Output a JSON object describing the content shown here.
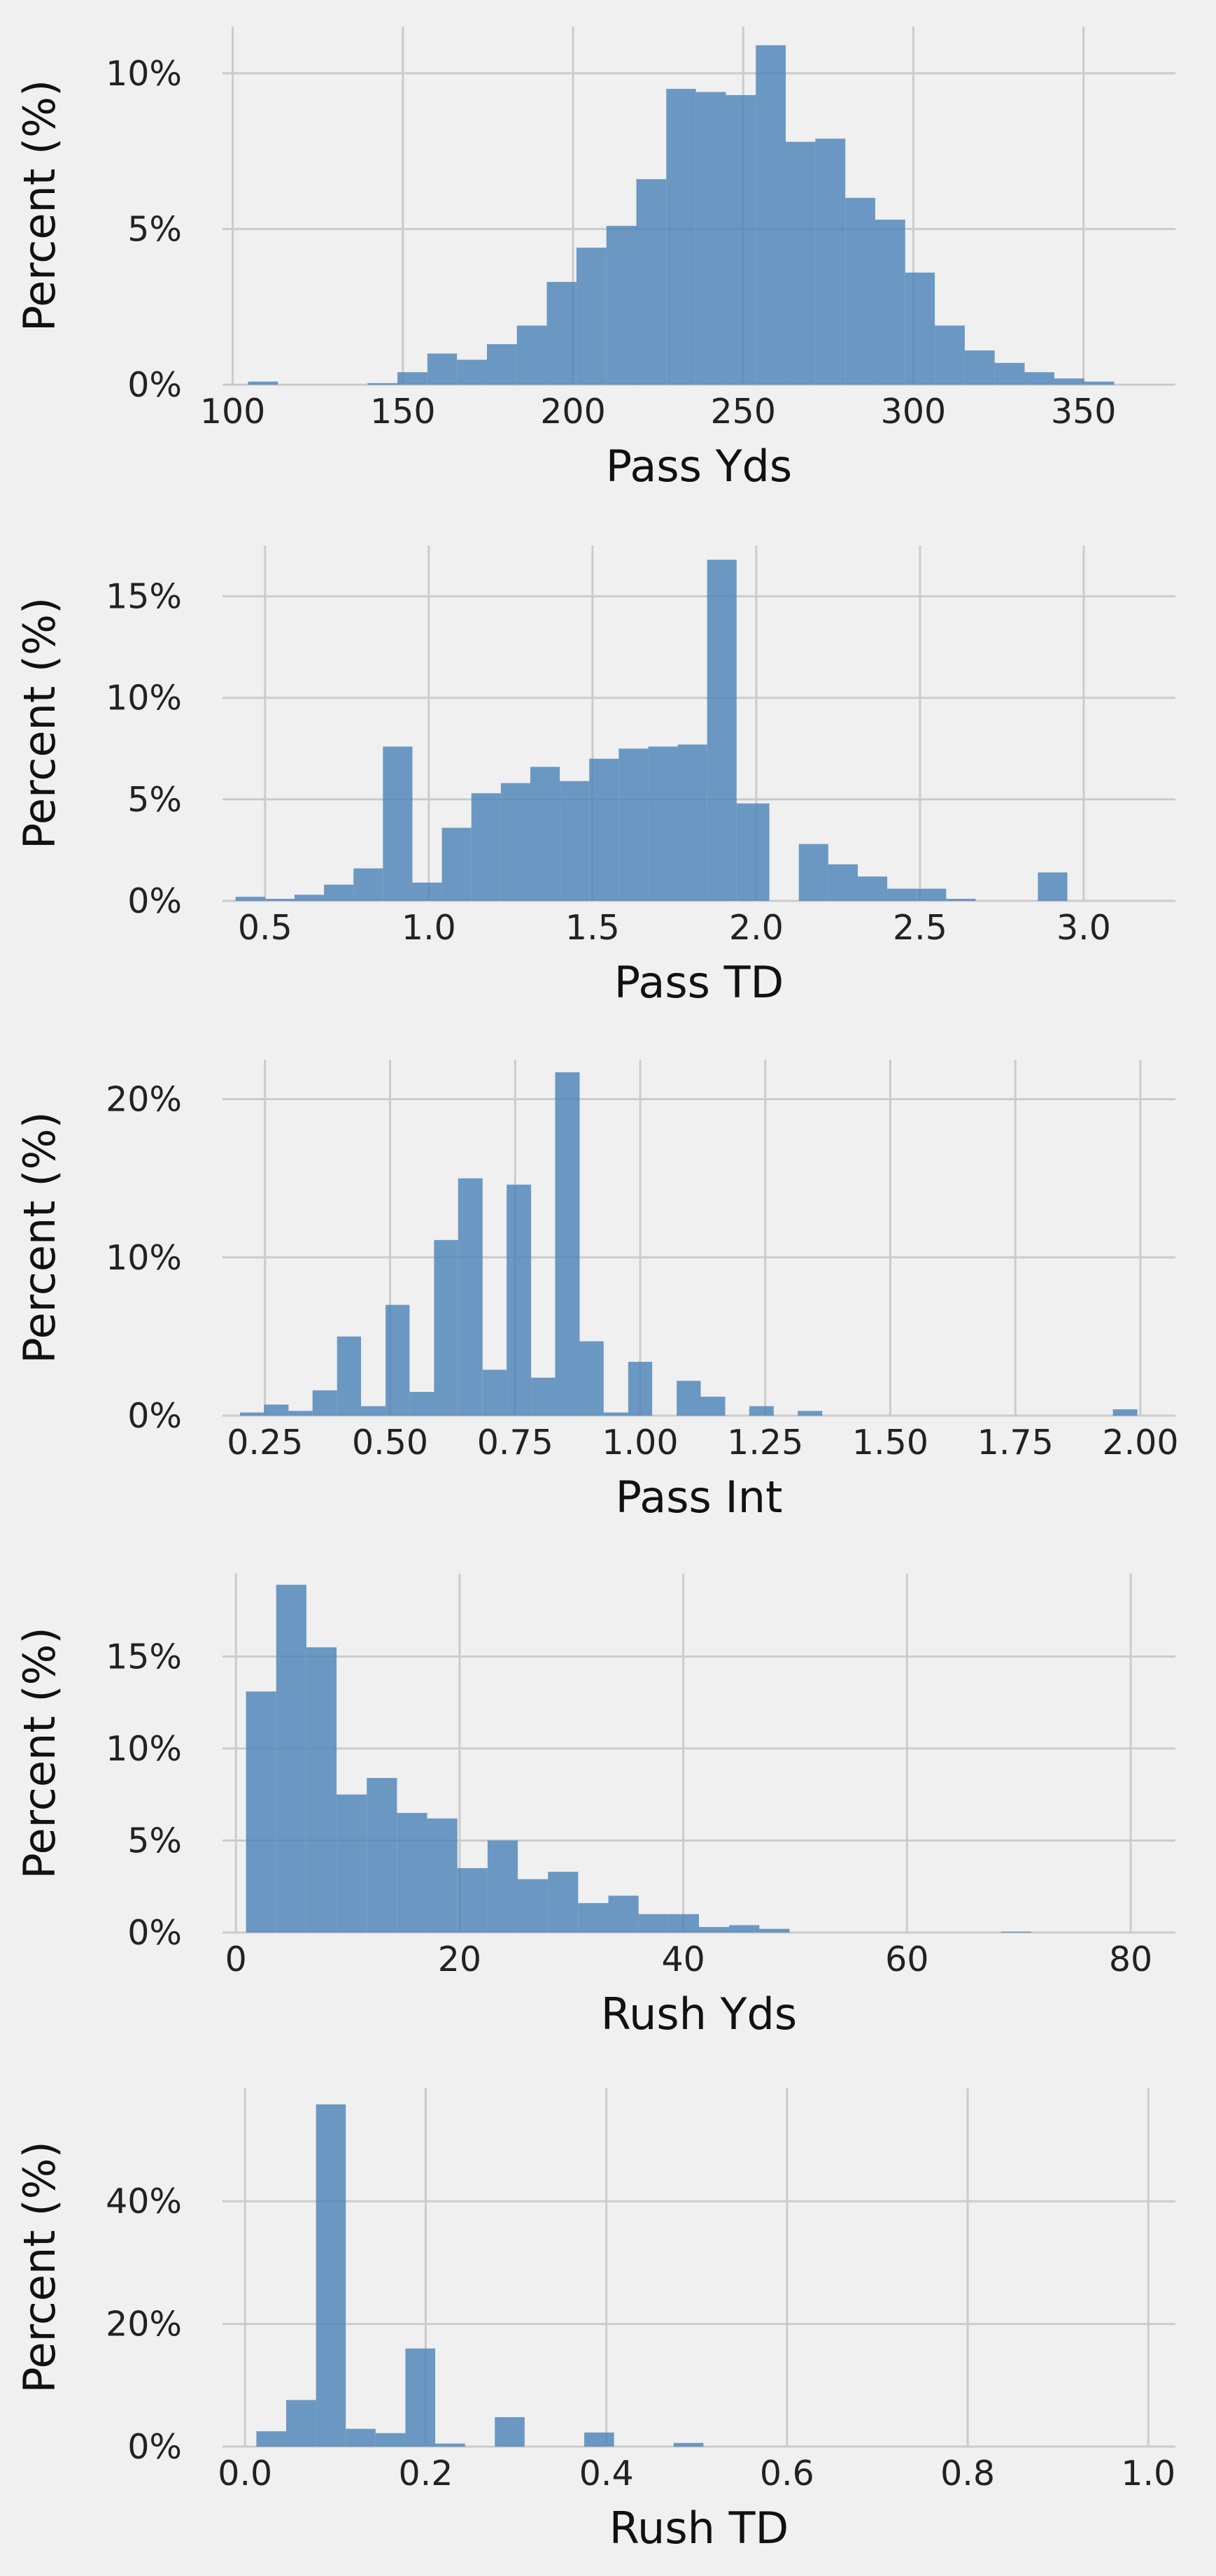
{
  "chart_data": [
    {
      "type": "bar",
      "xlabel": "Pass Yds",
      "ylabel": "Percent (%)",
      "xlim": [
        97,
        377
      ],
      "ylim": [
        0,
        11.5
      ],
      "xticks": [
        100,
        150,
        200,
        250,
        300,
        350
      ],
      "xtick_labels": [
        "100",
        "150",
        "200",
        "250",
        "300",
        "350"
      ],
      "yticks": [
        0,
        5,
        10
      ],
      "ytick_labels": [
        "0%",
        "5%",
        "10%"
      ],
      "grid": true,
      "bins": [
        {
          "x0": 104.5,
          "x1": 113.3,
          "value": 0.1
        },
        {
          "x0": 139.6,
          "x1": 148.4,
          "value": 0.05
        },
        {
          "x0": 148.4,
          "x1": 157.2,
          "value": 0.4
        },
        {
          "x0": 157.2,
          "x1": 165.9,
          "value": 1.0
        },
        {
          "x0": 165.9,
          "x1": 174.7,
          "value": 0.8
        },
        {
          "x0": 174.7,
          "x1": 183.5,
          "value": 1.3
        },
        {
          "x0": 183.5,
          "x1": 192.3,
          "value": 1.9
        },
        {
          "x0": 192.3,
          "x1": 201.0,
          "value": 3.3
        },
        {
          "x0": 201.0,
          "x1": 209.8,
          "value": 4.4
        },
        {
          "x0": 209.8,
          "x1": 218.6,
          "value": 5.1
        },
        {
          "x0": 218.6,
          "x1": 227.4,
          "value": 6.6
        },
        {
          "x0": 227.4,
          "x1": 236.1,
          "value": 9.5
        },
        {
          "x0": 236.1,
          "x1": 244.9,
          "value": 9.4
        },
        {
          "x0": 244.9,
          "x1": 253.7,
          "value": 9.3
        },
        {
          "x0": 253.7,
          "x1": 262.5,
          "value": 10.9
        },
        {
          "x0": 262.5,
          "x1": 271.2,
          "value": 7.8
        },
        {
          "x0": 271.2,
          "x1": 280.0,
          "value": 7.9
        },
        {
          "x0": 280.0,
          "x1": 288.8,
          "value": 6.0
        },
        {
          "x0": 288.8,
          "x1": 297.6,
          "value": 5.3
        },
        {
          "x0": 297.6,
          "x1": 306.3,
          "value": 3.6
        },
        {
          "x0": 306.3,
          "x1": 315.1,
          "value": 1.9
        },
        {
          "x0": 315.1,
          "x1": 323.9,
          "value": 1.1
        },
        {
          "x0": 323.9,
          "x1": 332.7,
          "value": 0.7
        },
        {
          "x0": 332.7,
          "x1": 341.4,
          "value": 0.4
        },
        {
          "x0": 341.4,
          "x1": 350.2,
          "value": 0.2
        },
        {
          "x0": 350.2,
          "x1": 359.0,
          "value": 0.1
        }
      ]
    },
    {
      "type": "bar",
      "xlabel": "Pass TD",
      "ylabel": "Percent (%)",
      "xlim": [
        0.37,
        3.28
      ],
      "ylim": [
        0,
        17.5
      ],
      "xticks": [
        0.5,
        1.0,
        1.5,
        2.0,
        2.5,
        3.0
      ],
      "xtick_labels": [
        "0.5",
        "1.0",
        "1.5",
        "2.0",
        "2.5",
        "3.0"
      ],
      "yticks": [
        0,
        5,
        10,
        15
      ],
      "ytick_labels": [
        "0%",
        "5%",
        "10%",
        "15%"
      ],
      "grid": true,
      "bins": [
        {
          "x0": 0.41,
          "x1": 0.5,
          "value": 0.2
        },
        {
          "x0": 0.5,
          "x1": 0.59,
          "value": 0.1
        },
        {
          "x0": 0.59,
          "x1": 0.68,
          "value": 0.3
        },
        {
          "x0": 0.68,
          "x1": 0.77,
          "value": 0.8
        },
        {
          "x0": 0.77,
          "x1": 0.86,
          "value": 1.6
        },
        {
          "x0": 0.86,
          "x1": 0.95,
          "value": 7.6
        },
        {
          "x0": 0.95,
          "x1": 1.04,
          "value": 0.9
        },
        {
          "x0": 1.04,
          "x1": 1.13,
          "value": 3.6
        },
        {
          "x0": 1.13,
          "x1": 1.22,
          "value": 5.3
        },
        {
          "x0": 1.22,
          "x1": 1.31,
          "value": 5.8
        },
        {
          "x0": 1.31,
          "x1": 1.4,
          "value": 6.6
        },
        {
          "x0": 1.4,
          "x1": 1.49,
          "value": 5.9
        },
        {
          "x0": 1.49,
          "x1": 1.58,
          "value": 7.0
        },
        {
          "x0": 1.58,
          "x1": 1.67,
          "value": 7.5
        },
        {
          "x0": 1.67,
          "x1": 1.76,
          "value": 7.6
        },
        {
          "x0": 1.76,
          "x1": 1.85,
          "value": 7.7
        },
        {
          "x0": 1.85,
          "x1": 1.94,
          "value": 16.8
        },
        {
          "x0": 1.94,
          "x1": 2.04,
          "value": 4.8
        },
        {
          "x0": 2.13,
          "x1": 2.22,
          "value": 2.8
        },
        {
          "x0": 2.22,
          "x1": 2.31,
          "value": 1.8
        },
        {
          "x0": 2.31,
          "x1": 2.4,
          "value": 1.2
        },
        {
          "x0": 2.4,
          "x1": 2.49,
          "value": 0.6
        },
        {
          "x0": 2.49,
          "x1": 2.58,
          "value": 0.6
        },
        {
          "x0": 2.58,
          "x1": 2.67,
          "value": 0.1
        },
        {
          "x0": 2.86,
          "x1": 2.95,
          "value": 1.4
        }
      ]
    },
    {
      "type": "bar",
      "xlabel": "Pass Int",
      "ylabel": "Percent (%)",
      "xlim": [
        0.165,
        2.07
      ],
      "ylim": [
        0,
        22.5
      ],
      "xticks": [
        0.25,
        0.5,
        0.75,
        1.0,
        1.25,
        1.5,
        1.75,
        2.0
      ],
      "xtick_labels": [
        "0.25",
        "0.50",
        "0.75",
        "1.00",
        "1.25",
        "1.50",
        "1.75",
        "2.00"
      ],
      "yticks": [
        0,
        10,
        20
      ],
      "ytick_labels": [
        "0%",
        "10%",
        "20%"
      ],
      "grid": true,
      "bins": [
        {
          "x0": 0.2,
          "x1": 0.248,
          "value": 0.2
        },
        {
          "x0": 0.248,
          "x1": 0.297,
          "value": 0.7
        },
        {
          "x0": 0.297,
          "x1": 0.345,
          "value": 0.3
        },
        {
          "x0": 0.345,
          "x1": 0.394,
          "value": 1.6
        },
        {
          "x0": 0.394,
          "x1": 0.442,
          "value": 5.0
        },
        {
          "x0": 0.442,
          "x1": 0.491,
          "value": 0.6
        },
        {
          "x0": 0.491,
          "x1": 0.539,
          "value": 7.0
        },
        {
          "x0": 0.539,
          "x1": 0.588,
          "value": 1.5
        },
        {
          "x0": 0.588,
          "x1": 0.636,
          "value": 11.1
        },
        {
          "x0": 0.636,
          "x1": 0.685,
          "value": 15.0
        },
        {
          "x0": 0.685,
          "x1": 0.733,
          "value": 2.9
        },
        {
          "x0": 0.733,
          "x1": 0.782,
          "value": 14.6
        },
        {
          "x0": 0.782,
          "x1": 0.83,
          "value": 2.4
        },
        {
          "x0": 0.83,
          "x1": 0.879,
          "value": 21.7
        },
        {
          "x0": 0.879,
          "x1": 0.927,
          "value": 4.7
        },
        {
          "x0": 0.927,
          "x1": 0.976,
          "value": 0.2
        },
        {
          "x0": 0.976,
          "x1": 1.024,
          "value": 3.4
        },
        {
          "x0": 1.073,
          "x1": 1.121,
          "value": 2.2
        },
        {
          "x0": 1.121,
          "x1": 1.17,
          "value": 1.2
        },
        {
          "x0": 1.218,
          "x1": 1.267,
          "value": 0.6
        },
        {
          "x0": 1.315,
          "x1": 1.364,
          "value": 0.3
        },
        {
          "x0": 1.945,
          "x1": 1.994,
          "value": 0.4
        }
      ]
    },
    {
      "type": "bar",
      "xlabel": "Rush Yds",
      "ylabel": "Percent (%)",
      "xlim": [
        -1.2,
        84.0
      ],
      "ylim": [
        0,
        19.5
      ],
      "xticks": [
        0,
        20,
        40,
        60,
        80
      ],
      "xtick_labels": [
        "0",
        "20",
        "40",
        "60",
        "80"
      ],
      "yticks": [
        0,
        5,
        10,
        15
      ],
      "ytick_labels": [
        "0%",
        "5%",
        "10%",
        "15%"
      ],
      "grid": true,
      "bins": [
        {
          "x0": 0.9,
          "x1": 3.6,
          "value": 13.1
        },
        {
          "x0": 3.6,
          "x1": 6.3,
          "value": 18.9
        },
        {
          "x0": 6.3,
          "x1": 9.0,
          "value": 15.5
        },
        {
          "x0": 9.0,
          "x1": 11.7,
          "value": 7.5
        },
        {
          "x0": 11.7,
          "x1": 14.4,
          "value": 8.4
        },
        {
          "x0": 14.4,
          "x1": 17.1,
          "value": 6.5
        },
        {
          "x0": 17.1,
          "x1": 19.8,
          "value": 6.2
        },
        {
          "x0": 19.8,
          "x1": 22.5,
          "value": 3.5
        },
        {
          "x0": 22.5,
          "x1": 25.2,
          "value": 5.0
        },
        {
          "x0": 25.2,
          "x1": 27.9,
          "value": 2.9
        },
        {
          "x0": 27.9,
          "x1": 30.6,
          "value": 3.3
        },
        {
          "x0": 30.6,
          "x1": 33.3,
          "value": 1.6
        },
        {
          "x0": 33.3,
          "x1": 36.0,
          "value": 2.0
        },
        {
          "x0": 36.0,
          "x1": 38.7,
          "value": 1.0
        },
        {
          "x0": 38.7,
          "x1": 41.4,
          "value": 1.0
        },
        {
          "x0": 41.4,
          "x1": 44.1,
          "value": 0.3
        },
        {
          "x0": 44.1,
          "x1": 46.8,
          "value": 0.4
        },
        {
          "x0": 46.8,
          "x1": 49.5,
          "value": 0.2
        },
        {
          "x0": 68.4,
          "x1": 71.1,
          "value": 0.05
        }
      ]
    },
    {
      "type": "bar",
      "xlabel": "Rush TD",
      "ylabel": "Percent (%)",
      "xlim": [
        -0.025,
        1.03
      ],
      "ylim": [
        0,
        58.5
      ],
      "xticks": [
        0.0,
        0.2,
        0.4,
        0.6,
        0.8,
        1.0
      ],
      "xtick_labels": [
        "0.0",
        "0.2",
        "0.4",
        "0.6",
        "0.8",
        "1.0"
      ],
      "yticks": [
        0,
        20,
        40
      ],
      "ytick_labels": [
        "0%",
        "20%",
        "40%"
      ],
      "grid": true,
      "bins": [
        {
          "x0": 0.0125,
          "x1": 0.0455,
          "value": 2.5
        },
        {
          "x0": 0.0455,
          "x1": 0.0785,
          "value": 7.6
        },
        {
          "x0": 0.0785,
          "x1": 0.1115,
          "value": 55.8
        },
        {
          "x0": 0.1115,
          "x1": 0.1445,
          "value": 2.9
        },
        {
          "x0": 0.1445,
          "x1": 0.1775,
          "value": 2.2
        },
        {
          "x0": 0.1775,
          "x1": 0.2105,
          "value": 16.0
        },
        {
          "x0": 0.2105,
          "x1": 0.2435,
          "value": 0.5
        },
        {
          "x0": 0.2765,
          "x1": 0.3095,
          "value": 4.8
        },
        {
          "x0": 0.3755,
          "x1": 0.4085,
          "value": 2.3
        },
        {
          "x0": 0.4745,
          "x1": 0.5075,
          "value": 0.6
        }
      ]
    }
  ]
}
